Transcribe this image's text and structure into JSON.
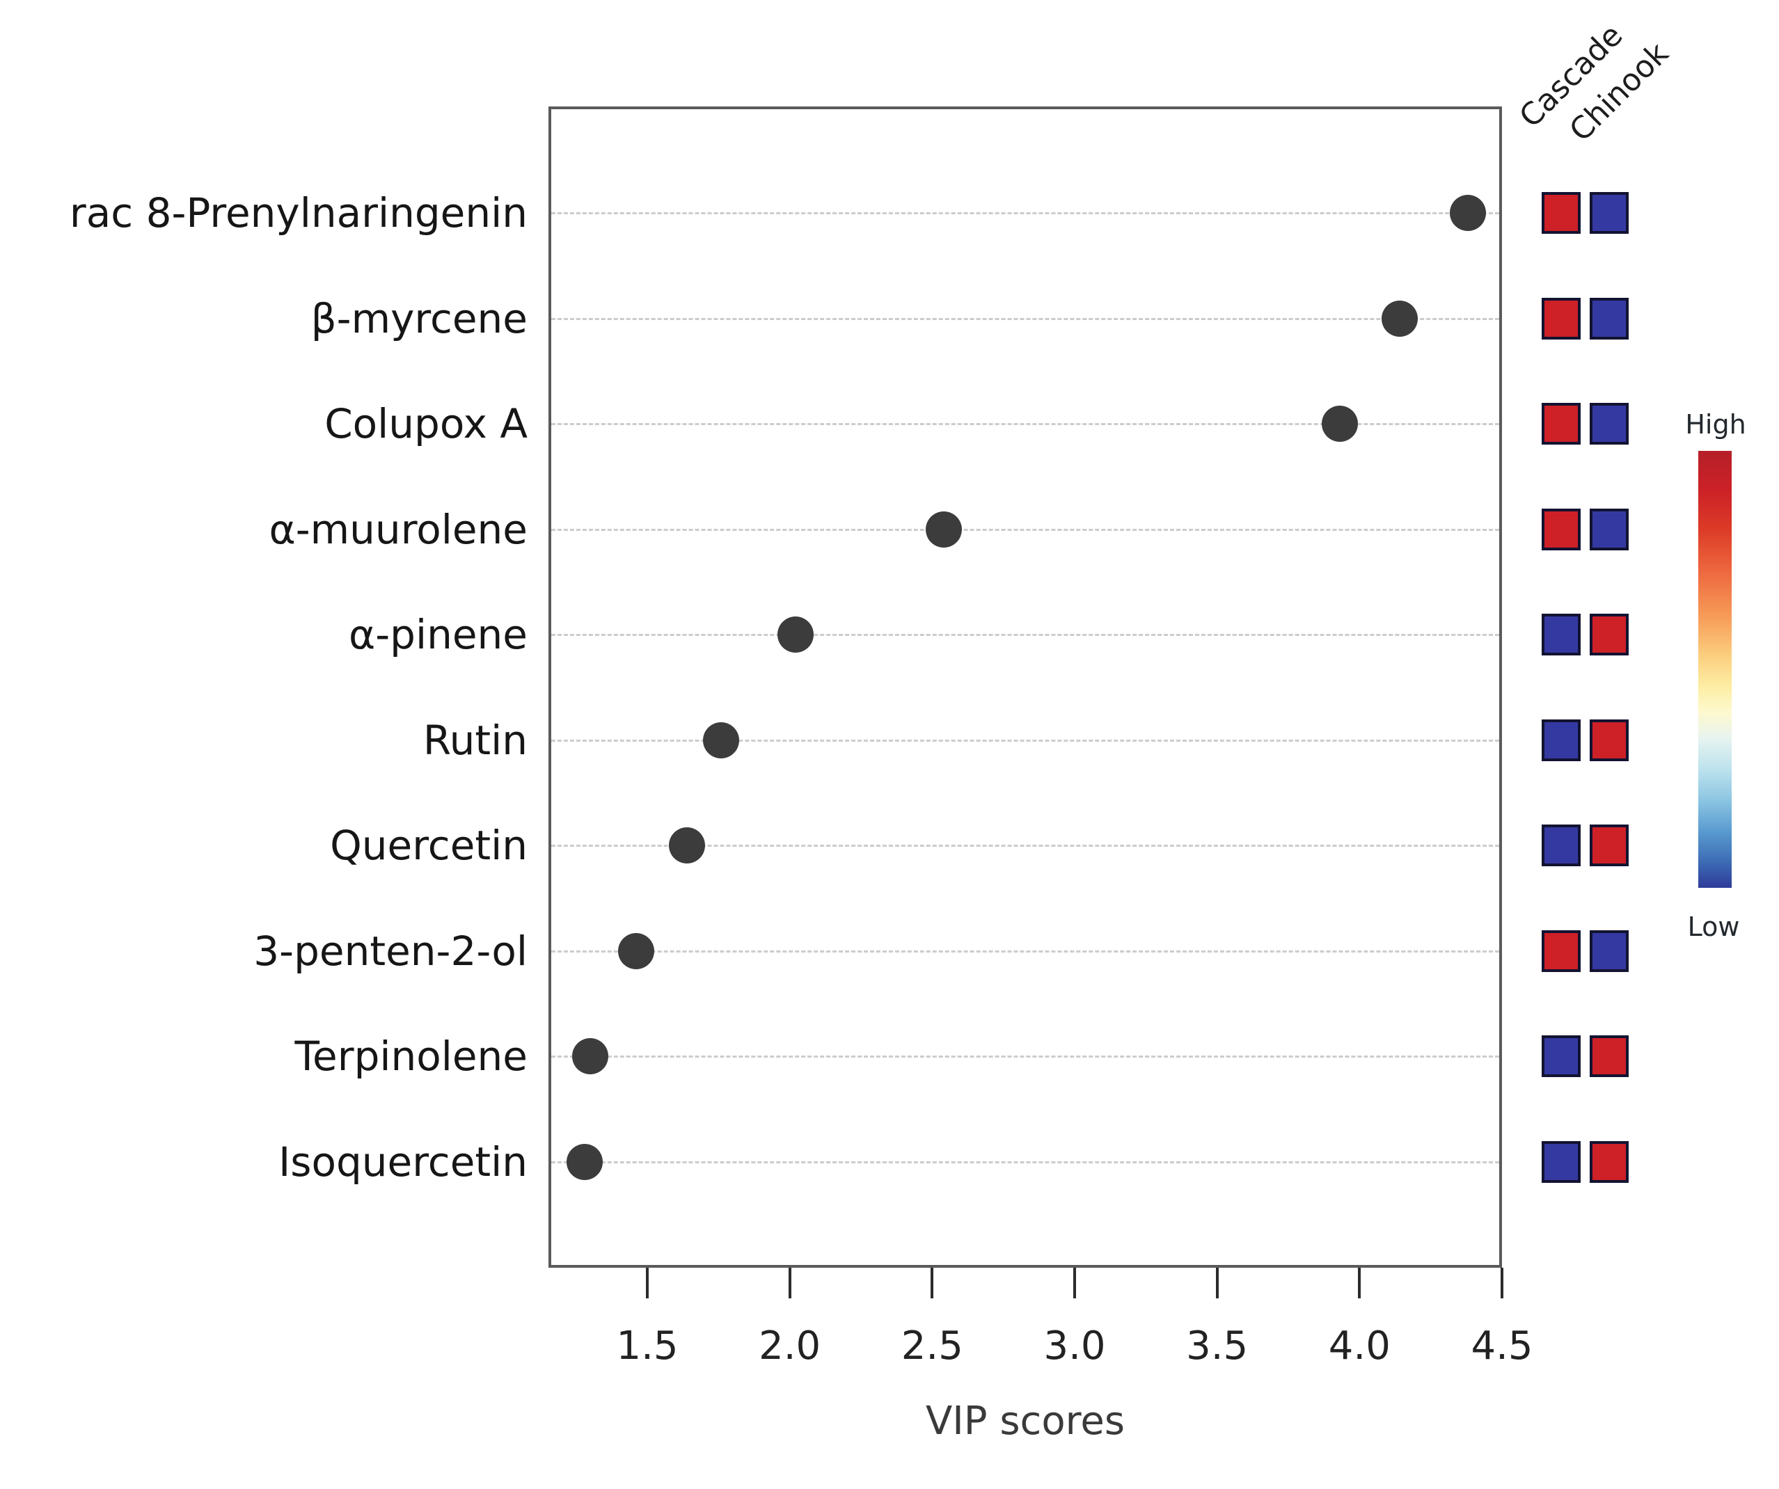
{
  "chart_data": {
    "type": "scatter",
    "orientation": "horizontal_dot_plot",
    "title": "",
    "xlabel": "VIP scores",
    "categories": [
      "rac 8-Prenylnaringenin",
      "β-myrcene",
      "Colupox A",
      "α-muurolene",
      "α-pinene",
      "Rutin",
      "Quercetin",
      "3-penten-2-ol",
      "Terpinolene",
      "Isoquercetin"
    ],
    "values": [
      4.38,
      4.14,
      3.93,
      2.54,
      2.02,
      1.76,
      1.64,
      1.46,
      1.3,
      1.28
    ],
    "x_ticks": [
      "1.5",
      "2.0",
      "2.5",
      "3.0",
      "3.5",
      "4.0",
      "4.5"
    ],
    "xlim": [
      1.15,
      4.5
    ],
    "grid": "horizontal-dashed",
    "legend_position": "right",
    "legend": {
      "high_label": "High",
      "low_label": "Low"
    },
    "heatmap": {
      "columns": [
        "Cascade",
        "Chinook"
      ],
      "levels": [
        [
          "High",
          "Low"
        ],
        [
          "High",
          "Low"
        ],
        [
          "High",
          "Low"
        ],
        [
          "High",
          "Low"
        ],
        [
          "Low",
          "High"
        ],
        [
          "Low",
          "High"
        ],
        [
          "Low",
          "High"
        ],
        [
          "High",
          "Low"
        ],
        [
          "Low",
          "High"
        ],
        [
          "Low",
          "High"
        ]
      ]
    },
    "colors": {
      "high": "#cd2027",
      "low": "#3439a2",
      "dot": "#3c3c3c",
      "gradient_top": "#b62029",
      "gradient_bottom": "#2e3b99"
    }
  }
}
